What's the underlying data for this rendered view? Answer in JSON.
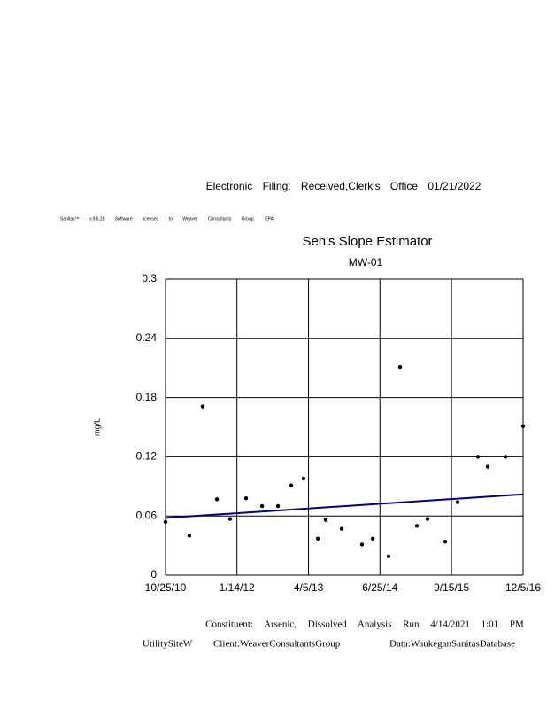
{
  "header": {
    "filing": "Electronic Filing: Received,Clerk's Office 01/21/2022",
    "license": "Sanitas™ v.9.6.28 Software licensed to Weaver Consultants Group. EPA"
  },
  "chart_data": {
    "type": "scatter",
    "title": "Sen's Slope Estimator",
    "subtitle": "MW-01",
    "y_label": "mg/L",
    "xlim": [
      "2010-10-25",
      "2016-12-05"
    ],
    "xticks": [
      {
        "value": "2010-10-25",
        "label": "10/25/10"
      },
      {
        "value": "2012-01-14",
        "label": "1/14/12"
      },
      {
        "value": "2013-04-05",
        "label": "4/5/13"
      },
      {
        "value": "2014-06-25",
        "label": "6/25/14"
      },
      {
        "value": "2015-09-15",
        "label": "9/15/15"
      },
      {
        "value": "2016-12-05",
        "label": "12/5/16"
      }
    ],
    "ylim": [
      0,
      0.3
    ],
    "yticks": [
      0,
      0.06,
      0.12,
      0.18,
      0.24,
      0.3
    ],
    "grid": true,
    "series": [
      {
        "color": "#000000",
        "x": [
          "2010-10-25",
          "2011-03-23",
          "2011-06-14",
          "2011-09-11",
          "2011-12-02",
          "2012-03-11",
          "2012-06-19",
          "2012-09-26",
          "2012-12-18",
          "2013-03-05",
          "2013-06-02",
          "2013-07-21",
          "2013-10-29",
          "2014-03-05",
          "2014-05-11",
          "2014-08-18",
          "2014-10-29",
          "2015-02-11",
          "2015-04-18",
          "2015-08-07",
          "2015-10-23",
          "2016-02-27",
          "2016-04-28",
          "2016-08-17",
          "2016-12-05"
        ],
        "values": [
          0.054,
          0.04,
          0.171,
          0.077,
          0.057,
          0.078,
          0.07,
          0.07,
          0.091,
          0.098,
          0.037,
          0.056,
          0.047,
          0.031,
          0.037,
          0.019,
          0.211,
          0.05,
          0.057,
          0.034,
          0.074,
          0.12,
          0.11,
          0.12,
          0.151
        ]
      }
    ],
    "trend": {
      "color": "#000080",
      "x": [
        "2010-10-25",
        "2016-12-05"
      ],
      "values": [
        0.058,
        0.082
      ]
    }
  },
  "footer": {
    "constituent": "Constituent: Arsenic, Dissolved Analysis Run 4/14/2021 1:01 PM",
    "site": "UtilitySiteW",
    "client": "Client:WeaverConsultantsGroup",
    "database": "Data:WaukeganSanitasDatabase"
  }
}
